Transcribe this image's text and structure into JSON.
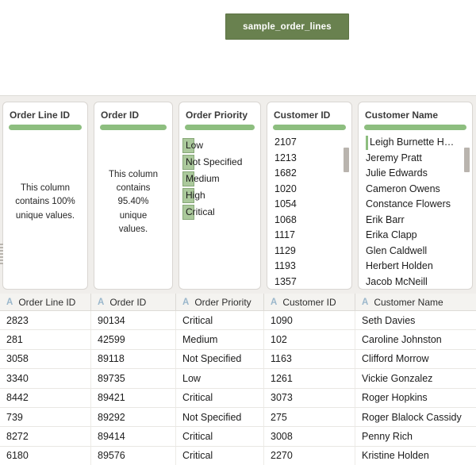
{
  "colors": {
    "node_green": "#69814f",
    "node_border": "#5d7345",
    "pill_green": "#8dbe7f",
    "mini_bar_fill": "#abc99c",
    "mini_bar_border": "#87a878",
    "pane_bg": "#f0eeeb",
    "card_border": "#d9d6d2",
    "header_bg": "#f4f3f0",
    "type_icon_blue": "#9ab7cb",
    "scroll_thumb": "#b9b4ae"
  },
  "flow": {
    "node_label": "sample_order_lines"
  },
  "profile_cards": [
    {
      "title": "Order Line ID",
      "kind": "summary",
      "summary": "This column contains 100% unique values."
    },
    {
      "title": "Order ID",
      "kind": "summary",
      "summary": "This column contains 95.40% unique values."
    },
    {
      "title": "Order Priority",
      "kind": "bars",
      "values": [
        "Low",
        "Not Specified",
        "Medium",
        "High",
        "Critical"
      ]
    },
    {
      "title": "Customer ID",
      "kind": "list",
      "scrollbar": true,
      "values": [
        "2107",
        "1213",
        "1682",
        "1020",
        "1054",
        "1068",
        "1117",
        "1129",
        "1193",
        "1357"
      ]
    },
    {
      "title": "Customer Name",
      "kind": "list",
      "scrollbar": true,
      "first_value_bar": true,
      "values": [
        "Leigh Burnette H…",
        "Jeremy Pratt",
        "Julie Edwards",
        "Cameron Owens",
        "Constance Flowers",
        "Erik Barr",
        "Erika Clapp",
        "Glen Caldwell",
        "Herbert Holden",
        "Jacob McNeill"
      ]
    }
  ],
  "table": {
    "columns": [
      {
        "type": "A",
        "label": "Order Line ID"
      },
      {
        "type": "A",
        "label": "Order ID"
      },
      {
        "type": "A",
        "label": "Order Priority"
      },
      {
        "type": "A",
        "label": "Customer ID"
      },
      {
        "type": "A",
        "label": "Customer Name"
      }
    ],
    "rows": [
      [
        "2823",
        "90134",
        "Critical",
        "1090",
        "Seth Davies"
      ],
      [
        "281",
        "42599",
        "Medium",
        "102",
        "Caroline Johnston"
      ],
      [
        "3058",
        "89118",
        "Not Specified",
        "1163",
        "Clifford Morrow"
      ],
      [
        "3340",
        "89735",
        "Low",
        "1261",
        "Vickie Gonzalez"
      ],
      [
        "8442",
        "89421",
        "Critical",
        "3073",
        "Roger Hopkins"
      ],
      [
        "739",
        "89292",
        "Not Specified",
        "275",
        "Roger Blalock Cassidy"
      ],
      [
        "8272",
        "89414",
        "Critical",
        "3008",
        "Penny Rich"
      ],
      [
        "6180",
        "89576",
        "Critical",
        "2270",
        "Kristine Holden"
      ]
    ]
  }
}
